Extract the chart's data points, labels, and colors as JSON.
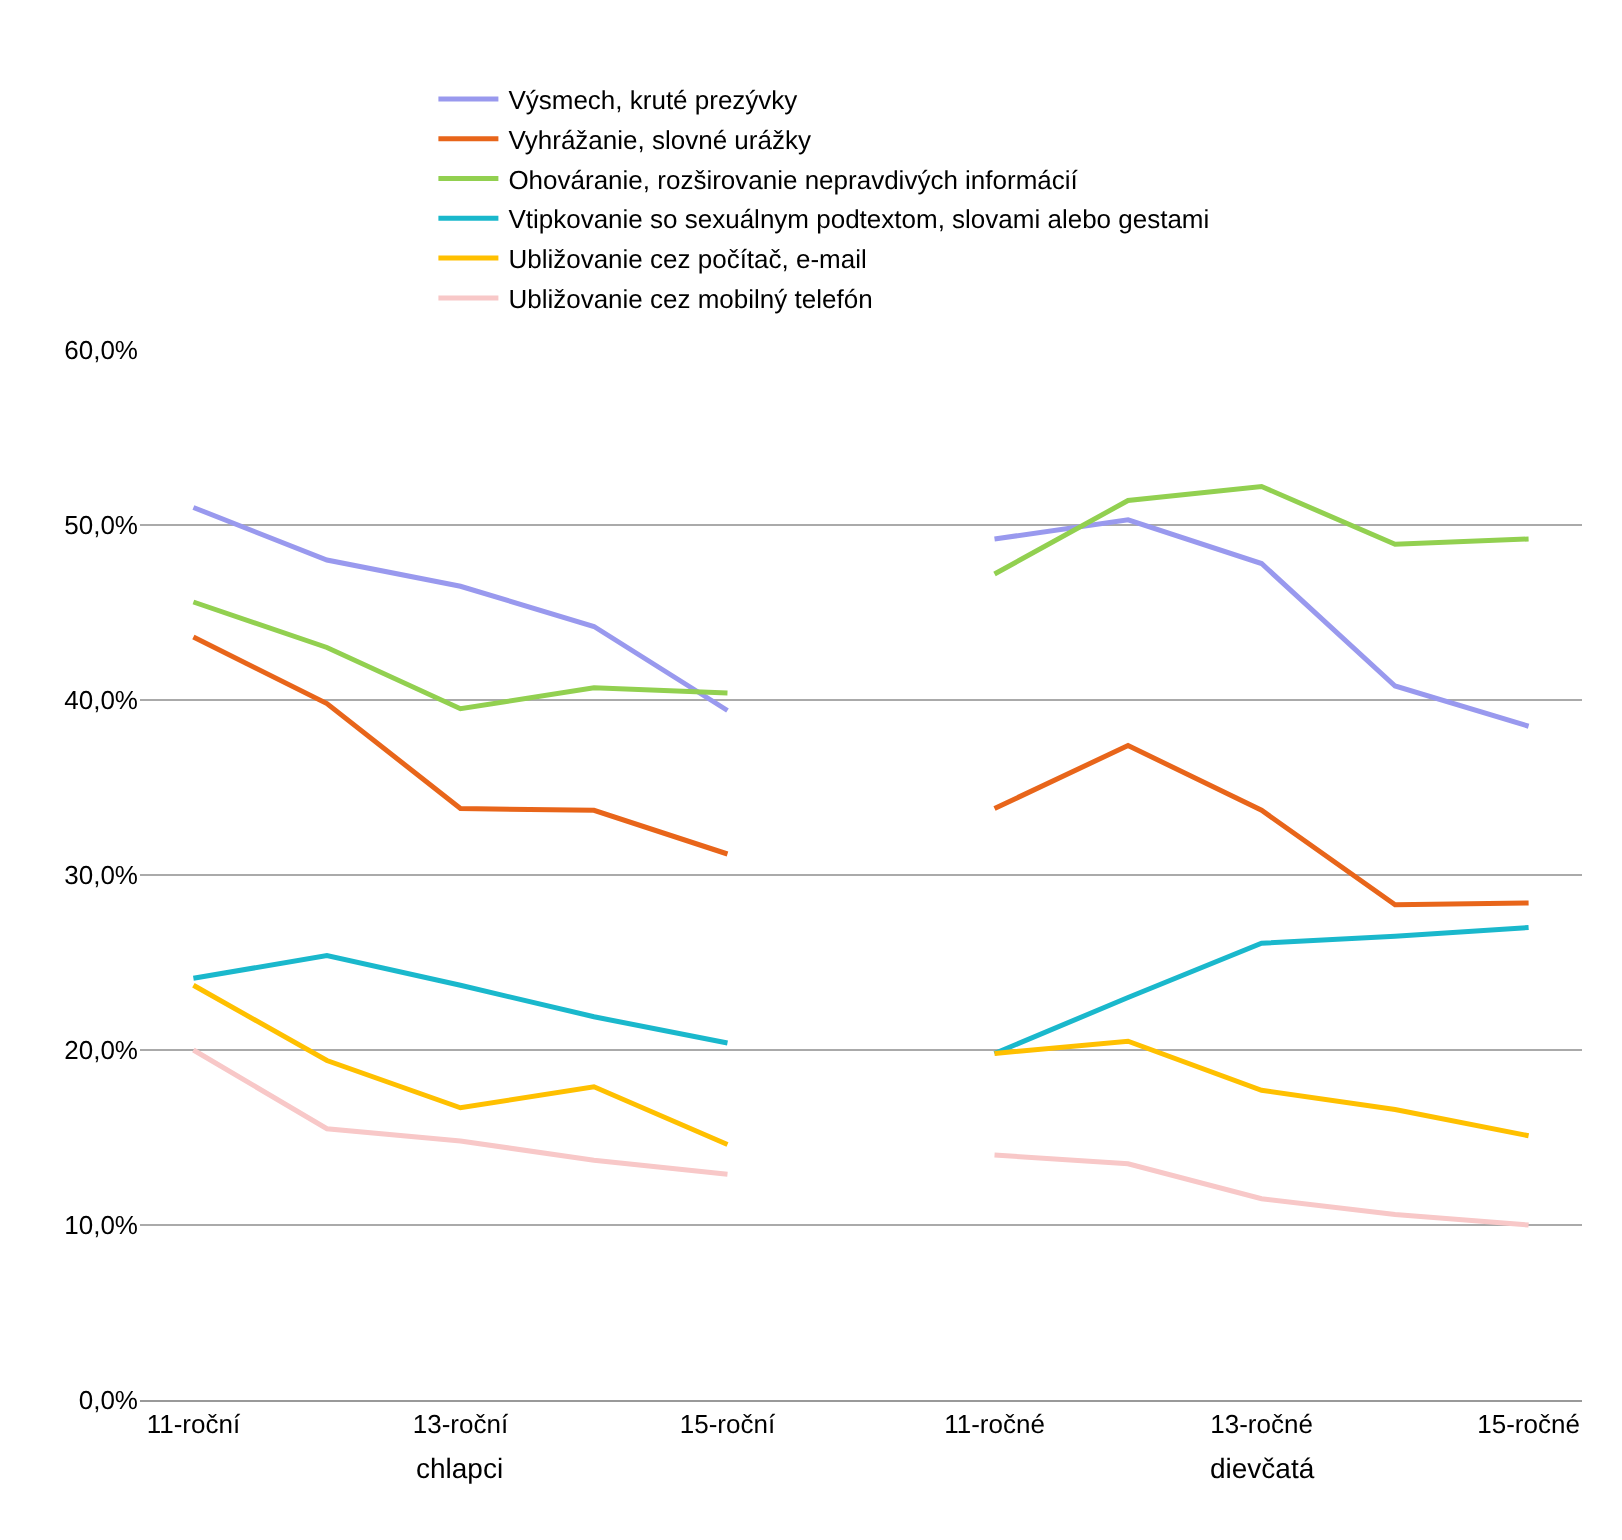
{
  "chart_data": {
    "type": "line",
    "categories": [
      "11-roční",
      null,
      "13-roční",
      null,
      "15-roční",
      null,
      "11-ročné",
      null,
      "13-ročné",
      null,
      "15-ročné"
    ],
    "series": [
      {
        "name": "Výsmech, kruté prezývky",
        "color": "#9999ee",
        "values": [
          51.0,
          48.0,
          46.5,
          44.2,
          39.4,
          null,
          49.2,
          50.3,
          47.8,
          40.8,
          38.5
        ]
      },
      {
        "name": "Vyhrážanie, slovné urážky",
        "color": "#e8651a",
        "values": [
          43.6,
          39.8,
          33.8,
          33.7,
          31.2,
          null,
          33.8,
          37.4,
          33.7,
          28.3,
          28.4
        ]
      },
      {
        "name": "Ohováranie, rozširovanie nepravdivých informácií",
        "color": "#92d050",
        "values": [
          45.6,
          43.0,
          39.5,
          40.7,
          40.4,
          null,
          47.2,
          51.4,
          52.2,
          48.9,
          49.2
        ]
      },
      {
        "name": "Vtipkovanie so sexuálnym podtextom, slovami alebo gestami",
        "color": "#1ab8cc",
        "values": [
          24.1,
          25.4,
          23.7,
          21.9,
          20.4,
          null,
          19.8,
          23.0,
          26.1,
          26.5,
          27.0
        ]
      },
      {
        "name": "Ubližovanie cez počítač, e-mail",
        "color": "#ffc000",
        "values": [
          23.7,
          19.4,
          16.7,
          17.9,
          14.6,
          null,
          19.8,
          20.5,
          17.7,
          16.6,
          15.1
        ]
      },
      {
        "name": "Ubližovanie cez mobilný telefón",
        "color": "#f8c8c8",
        "values": [
          20.0,
          15.5,
          14.8,
          13.7,
          12.9,
          null,
          14.0,
          13.5,
          11.5,
          10.6,
          10.0
        ]
      }
    ],
    "ylim": [
      0,
      60
    ],
    "yticks": [
      {
        "value": 0,
        "label": "0,0%"
      },
      {
        "value": 10,
        "label": "10,0%"
      },
      {
        "value": 20,
        "label": "20,0%"
      },
      {
        "value": 30,
        "label": "30,0%"
      },
      {
        "value": 40,
        "label": "40,0%"
      },
      {
        "value": 50,
        "label": "50,0%"
      },
      {
        "value": 60,
        "label": "60,0%"
      }
    ],
    "grid": "y",
    "legend": "top",
    "marker": "none",
    "line_style": "solid",
    "annotations": [
      "chlapci",
      "dievčatá"
    ]
  }
}
